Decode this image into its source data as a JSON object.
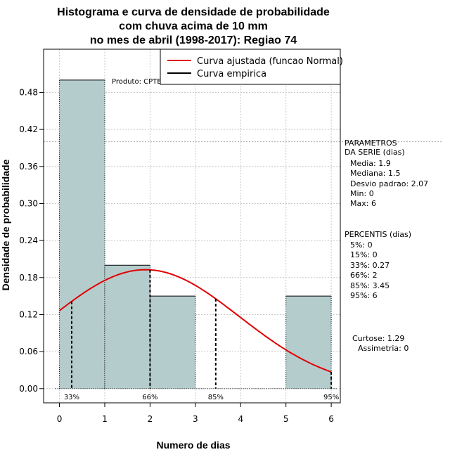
{
  "chart_data": {
    "type": "bar",
    "title_lines": [
      "Histograma e curva de densidade de probabilidade",
      "com chuva acima de 10 mm",
      "no mes de abril (1998-2017): Regiao 74"
    ],
    "xlabel": "Numero de dias",
    "ylabel": "Densidade de probabilidade",
    "xlim": [
      -0.35,
      6.2
    ],
    "ylim": [
      -0.023,
      0.55
    ],
    "xticks": [
      "0",
      "1",
      "2",
      "3",
      "4",
      "5",
      "6"
    ],
    "yticks": [
      "0.00",
      "0.06",
      "0.12",
      "0.18",
      "0.24",
      "0.30",
      "0.36",
      "0.42",
      "0.48"
    ],
    "grid": true,
    "bins": [
      {
        "x0": 0,
        "x1": 1,
        "density": 0.5
      },
      {
        "x0": 1,
        "x1": 2,
        "density": 0.2
      },
      {
        "x0": 2,
        "x1": 3,
        "density": 0.15
      },
      {
        "x0": 3,
        "x1": 4,
        "density": 0
      },
      {
        "x0": 4,
        "x1": 5,
        "density": 0
      },
      {
        "x0": 5,
        "x1": 6,
        "density": 0.15
      }
    ],
    "bar_color": "#b5cccc",
    "normal_curve": {
      "mean": 1.9,
      "sd": 2.07,
      "color": "#e00000"
    },
    "reference_line": 0.4,
    "percentile_lines": [
      {
        "label": "33%",
        "x": 0.27
      },
      {
        "label": "66%",
        "x": 2
      },
      {
        "label": "85%",
        "x": 3.45
      },
      {
        "label": "95%",
        "x": 6
      }
    ],
    "legend": {
      "position": "top-right",
      "items": [
        {
          "label": "Curva ajustada (funcao Normal)",
          "color": "#e00000"
        },
        {
          "label": "Curva empirica",
          "color": "#000000"
        }
      ]
    },
    "product_label": "Produto: CPTEC/INPE"
  },
  "side_panel": {
    "params_heading": [
      "PARAMETROS",
      "DA SERIE (dias)"
    ],
    "params": [
      "Media: 1.9",
      "Mediana: 1.5",
      "Desvio padrao: 2.07",
      "Min: 0",
      "Max: 6"
    ],
    "perc_heading": "PERCENTIS (dias)",
    "percentiles": [
      "5%: 0",
      "15%: 0",
      "33%: 0.27",
      "66%: 2",
      "85%: 3.45",
      "95%: 6"
    ],
    "kurtosis": "Curtose: 1.29",
    "skewness": "Assimetria: 0"
  }
}
